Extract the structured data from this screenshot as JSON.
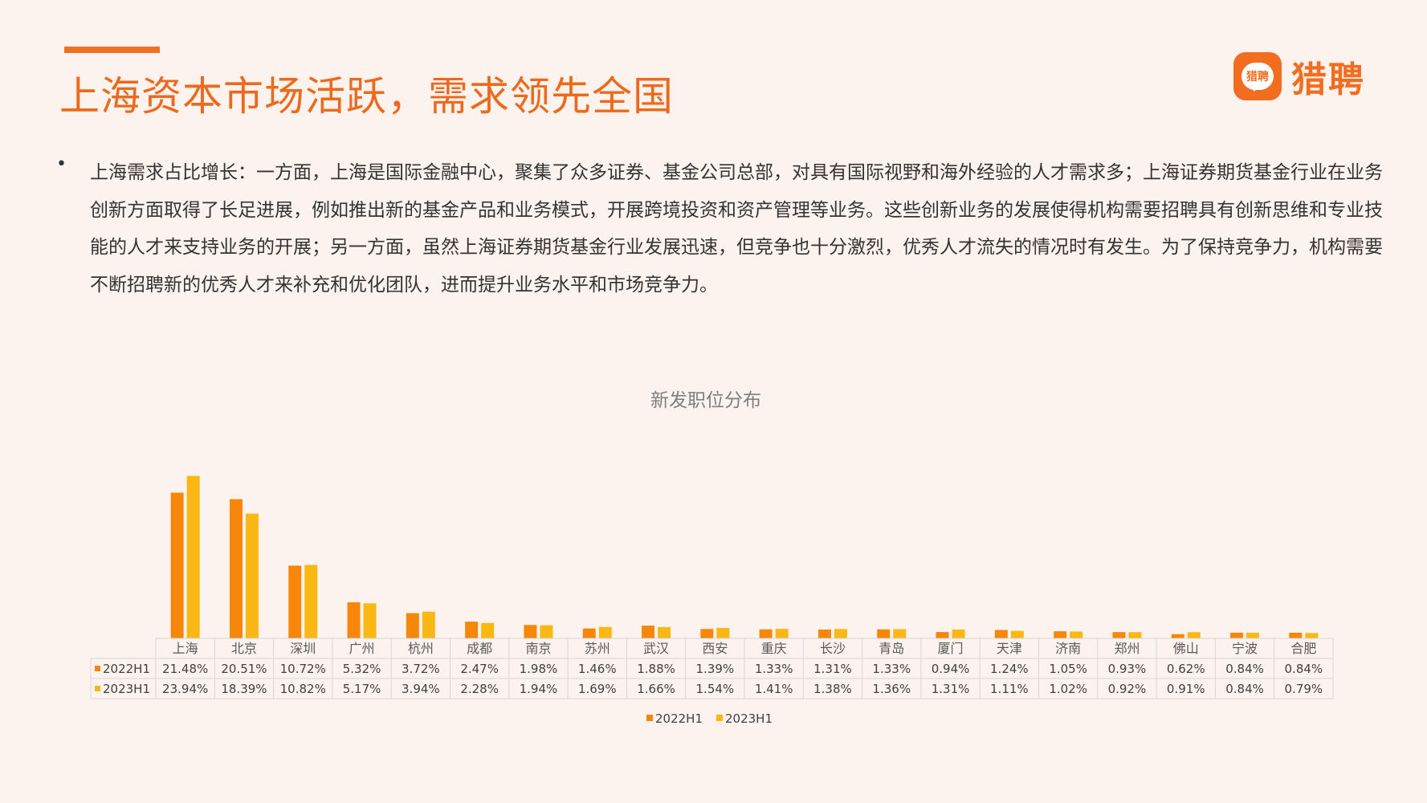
{
  "header": {
    "title": "上海资本市场活跃，需求领先全国",
    "accent_color": "#f06f22"
  },
  "brand": {
    "badge_text": "猎聘",
    "name": "猎聘",
    "icon": "speech-bubble-logo-icon",
    "color": "#f26d1f"
  },
  "body": {
    "bullet": "•",
    "paragraph": "上海需求占比增长：一方面，上海是国际金融中心，聚集了众多证券、基金公司总部，对具有国际视野和海外经验的人才需求多；上海证券期货基金行业在业务创新方面取得了长足进展，例如推出新的基金产品和业务模式，开展跨境投资和资产管理等业务。这些创新业务的发展使得机构需要招聘具有创新思维和专业技能的人才来支持业务的开展；另一方面，虽然上海证券期货基金行业发展迅速，但竞争也十分激烈，优秀人才流失的情况时有发生。为了保持竞争力，机构需要不断招聘新的优秀人才来补充和优化团队，进而提升业务水平和市场竞争力。"
  },
  "chart_data": {
    "type": "bar",
    "title": "新发职位分布",
    "categories": [
      "上海",
      "北京",
      "深圳",
      "广州",
      "杭州",
      "成都",
      "南京",
      "苏州",
      "武汉",
      "西安",
      "重庆",
      "长沙",
      "青岛",
      "厦门",
      "天津",
      "济南",
      "郑州",
      "佛山",
      "宁波",
      "合肥"
    ],
    "series": [
      {
        "name": "2022H1",
        "color": "#f7870b",
        "values": [
          21.48,
          20.51,
          10.72,
          5.32,
          3.72,
          2.47,
          1.98,
          1.46,
          1.88,
          1.39,
          1.33,
          1.31,
          1.33,
          0.94,
          1.24,
          1.05,
          0.93,
          0.62,
          0.84,
          0.84
        ],
        "labels": [
          "21.48%",
          "20.51%",
          "10.72%",
          "5.32%",
          "3.72%",
          "2.47%",
          "1.98%",
          "1.46%",
          "1.88%",
          "1.39%",
          "1.33%",
          "1.31%",
          "1.33%",
          "0.94%",
          "1.24%",
          "1.05%",
          "0.93%",
          "0.62%",
          "0.84%",
          "0.84%"
        ]
      },
      {
        "name": "2023H1",
        "color": "#fbb714",
        "values": [
          23.94,
          18.39,
          10.82,
          5.17,
          3.94,
          2.28,
          1.94,
          1.69,
          1.66,
          1.54,
          1.41,
          1.38,
          1.36,
          1.31,
          1.11,
          1.02,
          0.92,
          0.91,
          0.84,
          0.79
        ],
        "labels": [
          "23.94%",
          "18.39%",
          "10.82%",
          "5.17%",
          "3.94%",
          "2.28%",
          "1.94%",
          "1.69%",
          "1.66%",
          "1.54%",
          "1.41%",
          "1.38%",
          "1.36%",
          "1.31%",
          "1.11%",
          "1.02%",
          "0.92%",
          "0.91%",
          "0.84%",
          "0.79%"
        ]
      }
    ],
    "y_axis_visible": false,
    "grid": false,
    "legend_position": "bottom-center",
    "data_table": true
  }
}
